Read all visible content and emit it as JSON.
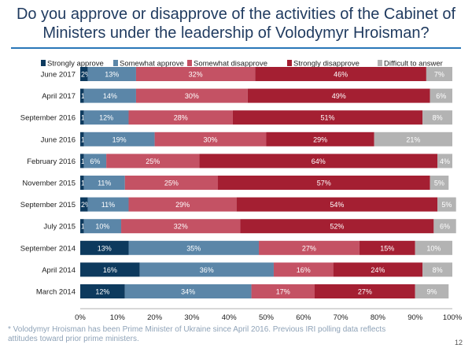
{
  "header": {
    "title": "Do you approve or disapprove of the activities of the Cabinet of Ministers under the leadership of Volodymyr Hroisman?"
  },
  "footnote": "* Volodymyr Hroisman has been Prime Minister of Ukraine since April 2016. Previous IRI polling data reflects attitudes toward prior prime ministers.",
  "page_number": "12",
  "colors": {
    "strongly_approve": "#0d3a5e",
    "somewhat_approve": "#5b86a8",
    "somewhat_disapprove": "#c45264",
    "strongly_disapprove": "#a41f32",
    "difficult": "#b3b3b3",
    "title": "#1f3a5f",
    "rule": "#2a77b8"
  },
  "chart_data": {
    "type": "bar",
    "orientation": "horizontal",
    "stacked": true,
    "categories": [
      "June 2017",
      "April 2017",
      "September 2016",
      "June 2016",
      "February 2016",
      "November 2015",
      "September 2015",
      "July 2015",
      "September 2014",
      "April 2014",
      "March 2014"
    ],
    "series": [
      {
        "name": "Strongly approve",
        "values": [
          2,
          1,
          1,
          1,
          1,
          1,
          2,
          1,
          13,
          16,
          12
        ]
      },
      {
        "name": "Somewhat approve",
        "values": [
          13,
          14,
          12,
          19,
          6,
          11,
          11,
          10,
          35,
          36,
          34
        ]
      },
      {
        "name": "Somewhat disapprove",
        "values": [
          32,
          30,
          28,
          30,
          25,
          25,
          29,
          32,
          27,
          16,
          17
        ]
      },
      {
        "name": "Strongly disapprove",
        "values": [
          46,
          49,
          51,
          29,
          64,
          57,
          54,
          52,
          15,
          24,
          27
        ]
      },
      {
        "name": "Difficult to answer",
        "values": [
          7,
          6,
          8,
          21,
          4,
          5,
          5,
          6,
          10,
          8,
          9
        ]
      }
    ],
    "xlim": [
      0,
      100
    ],
    "x_ticks": [
      "0%",
      "10%",
      "20%",
      "30%",
      "40%",
      "50%",
      "60%",
      "70%",
      "80%",
      "90%",
      "100%"
    ],
    "legend": "top",
    "grid": false
  }
}
